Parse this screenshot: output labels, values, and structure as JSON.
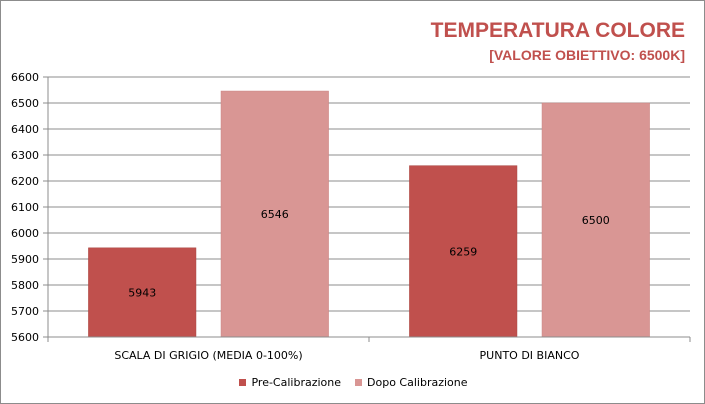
{
  "chart_data": {
    "type": "bar",
    "title": "TEMPERATURA COLORE",
    "subtitle": "[VALORE OBIETTIVO: 6500K]",
    "categories": [
      "SCALA DI GRIGIO  (MEDIA  0-100%)",
      "PUNTO DI BIANCO"
    ],
    "series": [
      {
        "name": "Pre-Calibrazione",
        "color": "#c0504d",
        "values": [
          5943,
          6259
        ]
      },
      {
        "name": "Dopo Calibrazione",
        "color": "#d99694",
        "values": [
          6546,
          6500
        ]
      }
    ],
    "ylim": [
      5600,
      6600
    ],
    "yticks": [
      5600,
      5700,
      5800,
      5900,
      6000,
      6100,
      6200,
      6300,
      6400,
      6500,
      6600
    ],
    "grid": true,
    "legend_position": "bottom"
  }
}
